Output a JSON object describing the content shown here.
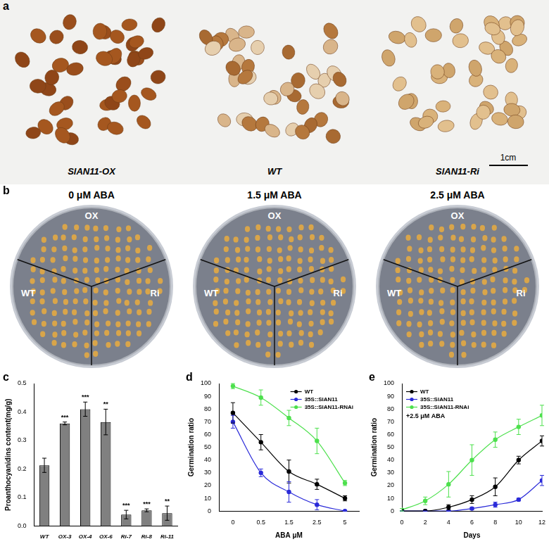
{
  "figure": {
    "a": {
      "panel": "a",
      "labels": [
        "SlAN11-OX",
        "WT",
        "SlAN11-Ri"
      ],
      "scale_bar": "1cm"
    },
    "b": {
      "panel": "b",
      "plates": [
        {
          "title": "0 μM ABA",
          "sections": [
            "OX",
            "WT",
            "Ri"
          ]
        },
        {
          "title": "1.5 μM ABA",
          "sections": [
            "OX",
            "WT",
            "Ri"
          ]
        },
        {
          "title": "2.5 μM ABA",
          "sections": [
            "OX",
            "WT",
            "Ri"
          ]
        }
      ]
    }
  },
  "chart_data": [
    {
      "panel": "c",
      "type": "bar",
      "y_label": "Proanthocyanidins content(mg/g)",
      "categories": [
        "WT",
        "OX-3",
        "OX-4",
        "OX-6",
        "Ri-7",
        "Ri-8",
        "Ri-11"
      ],
      "values": [
        0.213,
        0.36,
        0.41,
        0.365,
        0.04,
        0.055,
        0.045
      ],
      "errors": [
        0.025,
        0.005,
        0.025,
        0.045,
        0.015,
        0.005,
        0.025
      ],
      "significance": [
        null,
        "***",
        "***",
        "**",
        "***",
        "***",
        "**"
      ],
      "color": "#808080",
      "ylim": [
        0,
        0.5
      ],
      "yticks": [
        {
          "value": 0,
          "label": "0.0"
        },
        0.1,
        0.2,
        0.3,
        0.4,
        0.5
      ],
      "grid": false
    },
    {
      "panel": "d",
      "type": "line",
      "x_label": "ABA μM",
      "y_label": "Germination ratio",
      "categories": [
        "0",
        "0.5",
        "1.5",
        "2.5",
        "5"
      ],
      "series": [
        {
          "name": "WT",
          "color": "#000000",
          "marker": "circle",
          "values": [
            77,
            54,
            31,
            21,
            10
          ],
          "errors": [
            8,
            6,
            9,
            4,
            2
          ]
        },
        {
          "name": "35S::SlAN11",
          "color": "#2b2bd9",
          "marker": "circle",
          "values": [
            70,
            30,
            15,
            5,
            0
          ],
          "errors": [
            5,
            3,
            8,
            4,
            0
          ]
        },
        {
          "name": "35S::SlAN11-RNAi",
          "color": "#4de04d",
          "marker": "circle",
          "values": [
            98,
            89,
            73,
            55,
            22
          ],
          "errors": [
            2,
            6,
            6,
            10,
            2
          ]
        }
      ],
      "ylim": [
        0,
        100
      ],
      "yticks": [
        0,
        10,
        20,
        30,
        40,
        50,
        60,
        70,
        80,
        90,
        100
      ],
      "legend": "upper right",
      "grid": false
    },
    {
      "panel": "e",
      "type": "line",
      "x_label": "Days",
      "y_label": "Germination ratio",
      "x": [
        0,
        2,
        4,
        6,
        8,
        10,
        12
      ],
      "series": [
        {
          "name": "WT",
          "color": "#000000",
          "marker": "circle",
          "values": [
            0,
            0,
            3,
            9,
            19,
            40,
            55
          ],
          "errors": [
            0,
            0,
            2,
            3,
            7,
            3,
            4
          ]
        },
        {
          "name": "35S::SlAN11",
          "color": "#2b2bd9",
          "marker": "circle",
          "values": [
            0,
            0,
            0,
            2,
            5,
            9,
            24
          ],
          "errors": [
            0,
            0,
            0,
            1,
            2,
            1,
            4
          ]
        },
        {
          "name": "35S::SlAN11-RNAi",
          "color": "#4de04d",
          "marker": "circle",
          "values": [
            1,
            8,
            21,
            40,
            56,
            66,
            75
          ],
          "errors": [
            1,
            3,
            10,
            12,
            6,
            6,
            8
          ]
        }
      ],
      "annotations": [
        "+2.5 μM ABA"
      ],
      "xlim": [
        0,
        12
      ],
      "xticks": [
        0,
        2,
        4,
        6,
        8,
        10,
        12
      ],
      "ylim": [
        0,
        100
      ],
      "yticks": [
        0,
        10,
        20,
        30,
        40,
        50,
        60,
        70,
        80,
        90,
        100
      ],
      "legend": "upper left",
      "grid": false
    }
  ]
}
